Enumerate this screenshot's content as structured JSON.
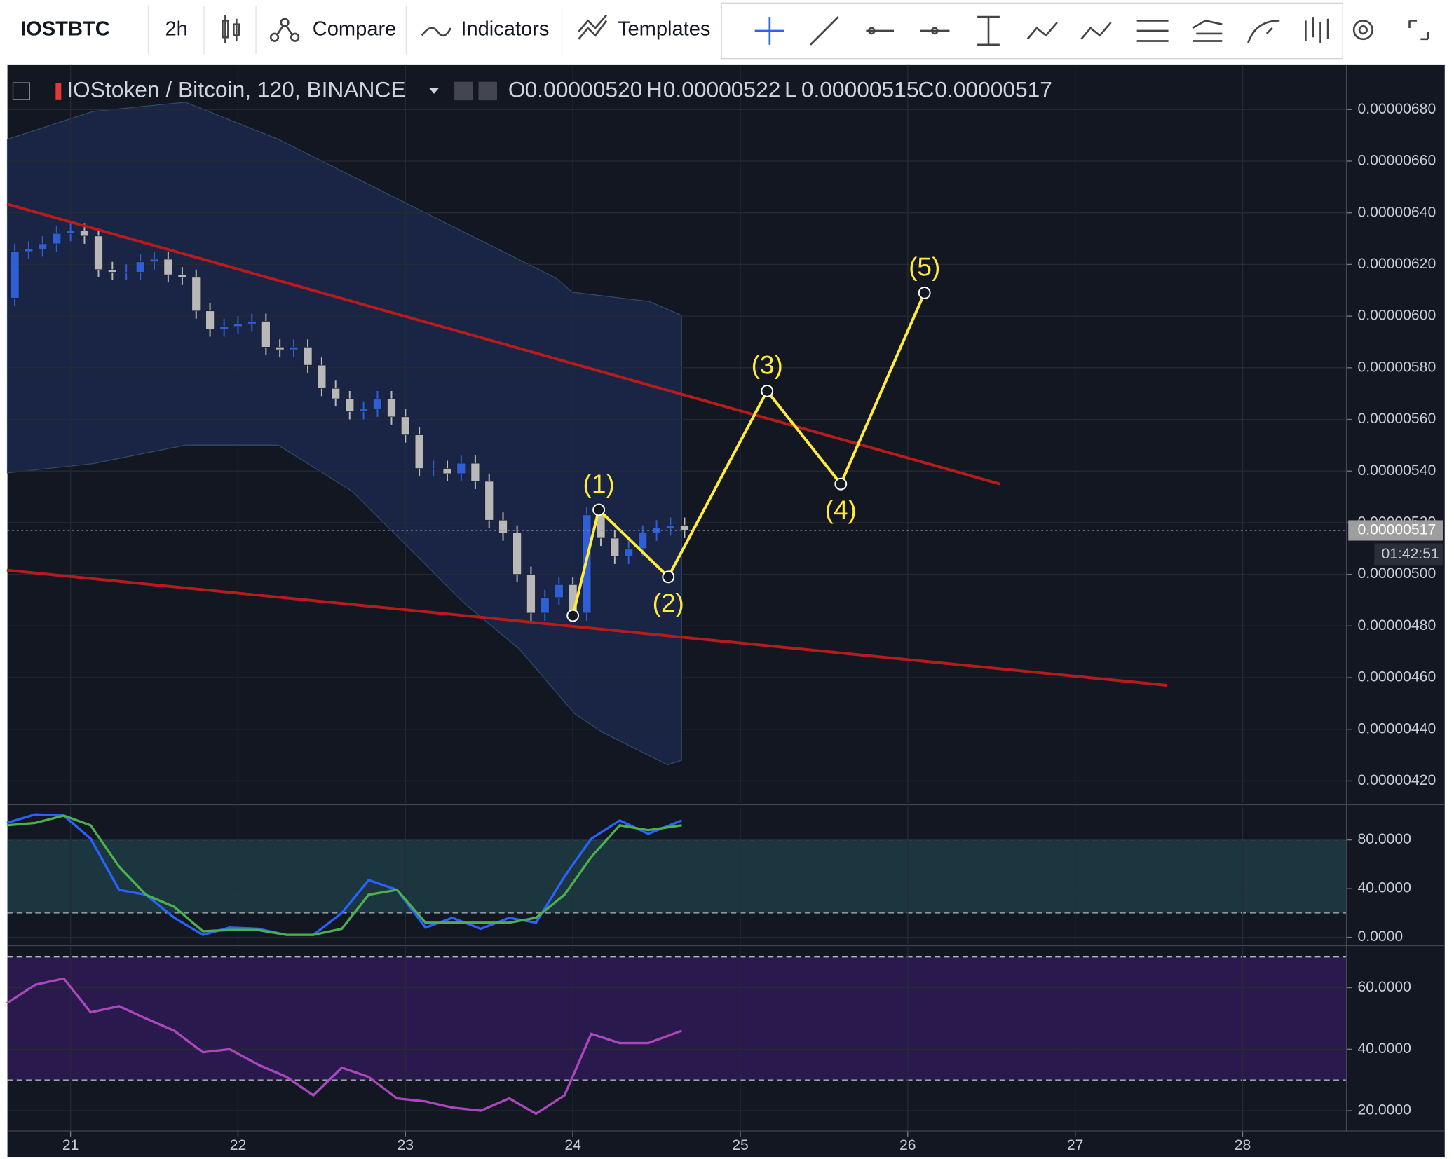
{
  "toolbar": {
    "symbol": "IOSTBTC",
    "interval": "2h",
    "buttons": [
      "Compare",
      "Indicators",
      "Templates"
    ]
  },
  "chart_data": [
    {
      "type": "candlestick",
      "title": "IOStoken / Bitcoin, 120, BINANCE",
      "ohlc_legend": [
        {
          "label": "O",
          "value": "0.00000520"
        },
        {
          "label": "H",
          "value": "0.00000522"
        },
        {
          "label": "L",
          "value": "0.00000515"
        },
        {
          "label": "C",
          "value": "0.00000517"
        }
      ],
      "up_color": "#2f5fd6",
      "down_color": "#b8b8b8",
      "x": [
        20.667,
        20.75,
        20.833,
        20.917,
        21,
        21.083,
        21.167,
        21.25,
        21.333,
        21.417,
        21.5,
        21.583,
        21.667,
        21.75,
        21.833,
        21.917,
        22,
        22.083,
        22.167,
        22.25,
        22.333,
        22.417,
        22.5,
        22.583,
        22.667,
        22.75,
        22.833,
        22.917,
        23,
        23.083,
        23.167,
        23.25,
        23.333,
        23.417,
        23.5,
        23.583,
        23.667,
        23.75,
        23.833,
        23.917,
        24,
        24.083,
        24.167,
        24.25,
        24.333,
        24.417,
        24.5,
        24.583,
        24.667
      ],
      "open": [
        6.07e-06,
        6.25e-06,
        6.26e-06,
        6.28e-06,
        6.32e-06,
        6.33e-06,
        6.31e-06,
        6.18e-06,
        6.17e-06,
        6.17e-06,
        6.21e-06,
        6.22e-06,
        6.16e-06,
        6.15e-06,
        6.02e-06,
        5.95e-06,
        5.96e-06,
        5.97e-06,
        5.98e-06,
        5.88e-06,
        5.87e-06,
        5.88e-06,
        5.81e-06,
        5.72e-06,
        5.68e-06,
        5.63e-06,
        5.64e-06,
        5.68e-06,
        5.61e-06,
        5.54e-06,
        5.41e-06,
        5.41e-06,
        5.39e-06,
        5.43e-06,
        5.36e-06,
        5.21e-06,
        5.16e-06,
        5e-06,
        4.85e-06,
        4.91e-06,
        4.96e-06,
        4.85e-06,
        5.23e-06,
        5.14e-06,
        5.07e-06,
        5.1e-06,
        5.16e-06,
        5.18e-06,
        5.19e-06
      ],
      "high": [
        6.28e-06,
        6.29e-06,
        6.31e-06,
        6.35e-06,
        6.36e-06,
        6.36e-06,
        6.34e-06,
        6.21e-06,
        6.2e-06,
        6.24e-06,
        6.25e-06,
        6.25e-06,
        6.19e-06,
        6.18e-06,
        6.05e-06,
        5.99e-06,
        6e-06,
        6.01e-06,
        6.01e-06,
        5.91e-06,
        5.91e-06,
        5.91e-06,
        5.84e-06,
        5.75e-06,
        5.71e-06,
        5.67e-06,
        5.71e-06,
        5.71e-06,
        5.64e-06,
        5.57e-06,
        5.44e-06,
        5.44e-06,
        5.46e-06,
        5.46e-06,
        5.39e-06,
        5.24e-06,
        5.19e-06,
        5.03e-06,
        4.94e-06,
        4.99e-06,
        4.99e-06,
        5.26e-06,
        5.26e-06,
        5.17e-06,
        5.13e-06,
        5.19e-06,
        5.21e-06,
        5.22e-06,
        5.22e-06
      ],
      "low": [
        6.04e-06,
        6.22e-06,
        6.23e-06,
        6.25e-06,
        6.29e-06,
        6.28e-06,
        6.15e-06,
        6.14e-06,
        6.14e-06,
        6.14e-06,
        6.18e-06,
        6.13e-06,
        6.12e-06,
        5.99e-06,
        5.92e-06,
        5.92e-06,
        5.93e-06,
        5.94e-06,
        5.85e-06,
        5.84e-06,
        5.84e-06,
        5.78e-06,
        5.69e-06,
        5.65e-06,
        5.6e-06,
        5.6e-06,
        5.61e-06,
        5.58e-06,
        5.51e-06,
        5.38e-06,
        5.38e-06,
        5.36e-06,
        5.36e-06,
        5.33e-06,
        5.18e-06,
        5.13e-06,
        4.97e-06,
        4.82e-06,
        4.82e-06,
        4.88e-06,
        4.82e-06,
        4.82e-06,
        5.11e-06,
        5.04e-06,
        5.04e-06,
        5.07e-06,
        5.13e-06,
        5.15e-06,
        5.14e-06
      ],
      "close": [
        6.25e-06,
        6.26e-06,
        6.28e-06,
        6.32e-06,
        6.33e-06,
        6.31e-06,
        6.18e-06,
        6.17e-06,
        6.17e-06,
        6.21e-06,
        6.22e-06,
        6.16e-06,
        6.15e-06,
        6.02e-06,
        5.95e-06,
        5.96e-06,
        5.97e-06,
        5.98e-06,
        5.88e-06,
        5.87e-06,
        5.88e-06,
        5.81e-06,
        5.72e-06,
        5.68e-06,
        5.63e-06,
        5.64e-06,
        5.68e-06,
        5.61e-06,
        5.54e-06,
        5.41e-06,
        5.41e-06,
        5.39e-06,
        5.43e-06,
        5.36e-06,
        5.21e-06,
        5.16e-06,
        5e-06,
        4.85e-06,
        4.91e-06,
        4.96e-06,
        4.85e-06,
        5.23e-06,
        5.14e-06,
        5.07e-06,
        5.1e-06,
        5.16e-06,
        5.18e-06,
        5.19e-06,
        5.17e-06
      ],
      "last_price": {
        "value": 5.17e-06,
        "label": "0.00000517",
        "countdown": "01:42:51"
      },
      "xlim": [
        20.623,
        28.62
      ],
      "xticks": [
        21,
        22,
        23,
        24,
        25,
        26,
        27,
        28
      ],
      "ylim": [
        4.115e-06,
        6.972e-06
      ],
      "yticks": [
        {
          "value": 4.2e-06,
          "label": "0.00000420"
        },
        {
          "value": 4.4e-06,
          "label": "0.00000440"
        },
        {
          "value": 4.6e-06,
          "label": "0.00000460"
        },
        {
          "value": 4.8e-06,
          "label": "0.00000480"
        },
        {
          "value": 5e-06,
          "label": "0.00000500"
        },
        {
          "value": 5.2e-06,
          "label": "0.00000520"
        },
        {
          "value": 5.4e-06,
          "label": "0.00000540"
        },
        {
          "value": 5.6e-06,
          "label": "0.00000560"
        },
        {
          "value": 5.8e-06,
          "label": "0.00000580"
        },
        {
          "value": 6e-06,
          "label": "0.00000600"
        },
        {
          "value": 6.2e-06,
          "label": "0.00000620"
        },
        {
          "value": 6.4e-06,
          "label": "0.00000640"
        },
        {
          "value": 6.6e-06,
          "label": "0.00000660"
        },
        {
          "value": 6.8e-06,
          "label": "0.00000680"
        }
      ],
      "trend_lines": [
        {
          "color": "#b71c1c",
          "x": [
            20.62,
            26.55
          ],
          "y": [
            6.434e-06,
            5.35e-06
          ]
        },
        {
          "color": "#b71c1c",
          "x": [
            20.62,
            27.55
          ],
          "y": [
            5.016e-06,
            4.57e-06
          ]
        }
      ],
      "wave": {
        "color": "#ffeb3b",
        "labels": [
          null,
          "(1)",
          "(2)",
          "(3)",
          "(4)",
          "(5)"
        ],
        "x": [
          24.0,
          24.155,
          24.57,
          25.16,
          25.6,
          26.1
        ],
        "y": [
          4.84e-06,
          5.25e-06,
          4.99e-06,
          5.71e-06,
          5.35e-06,
          6.09e-06
        ]
      }
    },
    {
      "type": "line",
      "xlim": [
        20.623,
        28.62
      ],
      "x": [
        20.62,
        20.79,
        20.96,
        21.12,
        21.29,
        21.45,
        21.62,
        21.79,
        21.95,
        22.12,
        22.29,
        22.45,
        22.62,
        22.78,
        22.95,
        23.12,
        23.28,
        23.45,
        23.62,
        23.78,
        23.95,
        24.11,
        24.28,
        24.45,
        24.65
      ],
      "series": [
        {
          "color": "#2962ff",
          "values": [
            94,
            101,
            100,
            81,
            39,
            35,
            16,
            2,
            8,
            7,
            2,
            2,
            20,
            47,
            39,
            8,
            16,
            7,
            16,
            12,
            50,
            81,
            96,
            85,
            96
          ]
        },
        {
          "color": "#4caf50",
          "values": [
            92,
            94,
            100,
            92,
            58,
            35,
            25,
            5,
            6,
            6,
            2,
            2,
            7,
            35,
            39,
            12,
            12,
            12,
            12,
            16,
            35,
            66,
            92,
            88,
            92
          ]
        }
      ],
      "levels": [
        80,
        20
      ],
      "band_color": "#1e3a44",
      "ylim": [
        -5.3,
        107.4
      ],
      "yticks": [
        {
          "value": 0,
          "label": "0.0000"
        },
        {
          "value": 40,
          "label": "40.0000"
        },
        {
          "value": 80,
          "label": "80.0000"
        }
      ]
    },
    {
      "type": "line",
      "xlim": [
        20.623,
        28.62
      ],
      "x": [
        20.62,
        20.79,
        20.96,
        21.12,
        21.29,
        21.45,
        21.62,
        21.79,
        21.95,
        22.12,
        22.29,
        22.45,
        22.62,
        22.78,
        22.95,
        23.12,
        23.28,
        23.45,
        23.62,
        23.78,
        23.95,
        24.11,
        24.28,
        24.45,
        24.65
      ],
      "series": [
        {
          "color": "#ab47bc",
          "values": [
            55,
            61,
            63,
            52,
            54,
            50,
            46,
            39,
            40,
            35,
            31,
            25,
            34,
            31,
            24,
            23,
            21,
            20,
            24,
            19,
            25,
            45,
            42,
            42,
            46
          ]
        }
      ],
      "levels": [
        70,
        30
      ],
      "band_color": "#2e1a52",
      "ylim": [
        13.4,
        73.1
      ],
      "yticks": [
        {
          "value": 20,
          "label": "20.0000"
        },
        {
          "value": 40,
          "label": "40.0000"
        },
        {
          "value": 60,
          "label": "60.0000"
        }
      ]
    }
  ]
}
